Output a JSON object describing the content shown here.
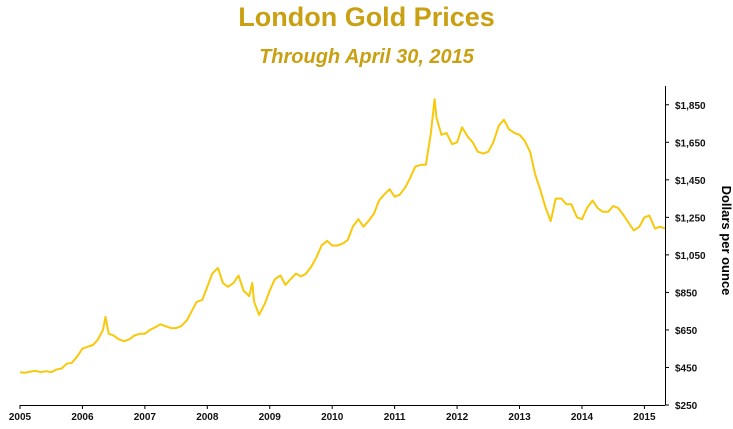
{
  "chart_data": {
    "type": "line",
    "title": "London Gold Prices",
    "subtitle": "Through April 30, 2015",
    "ylabel": "Dollars per ounce",
    "xlabel": "",
    "xlim": [
      2005,
      2015.33
    ],
    "ylim": [
      250,
      1950
    ],
    "x_ticks": [
      "2005",
      "2006",
      "2007",
      "2008",
      "2009",
      "2010",
      "2011",
      "2012",
      "2013",
      "2014",
      "2015"
    ],
    "y_ticks": [
      "$250",
      "$450",
      "$650",
      "$850",
      "$1,050",
      "$1,250",
      "$1,450",
      "$1,650",
      "$1,850"
    ],
    "grid": false,
    "legend": "none",
    "colors": {
      "title": "#C9A012",
      "line": "#F7C90A",
      "axis": "#000000"
    },
    "series": [
      {
        "x": [
          2005.0,
          2005.08,
          2005.17,
          2005.25,
          2005.33,
          2005.42,
          2005.5,
          2005.58,
          2005.67,
          2005.75,
          2005.83,
          2005.92,
          2006.0,
          2006.08,
          2006.17,
          2006.25,
          2006.33,
          2006.37,
          2006.42,
          2006.5,
          2006.58,
          2006.67,
          2006.75,
          2006.83,
          2006.92,
          2007.0,
          2007.08,
          2007.17,
          2007.25,
          2007.33,
          2007.42,
          2007.5,
          2007.58,
          2007.67,
          2007.75,
          2007.83,
          2007.92,
          2008.0,
          2008.08,
          2008.17,
          2008.2,
          2008.25,
          2008.33,
          2008.42,
          2008.5,
          2008.58,
          2008.67,
          2008.72,
          2008.75,
          2008.83,
          2008.92,
          2009.0,
          2009.08,
          2009.17,
          2009.25,
          2009.33,
          2009.42,
          2009.5,
          2009.58,
          2009.67,
          2009.75,
          2009.83,
          2009.92,
          2010.0,
          2010.08,
          2010.17,
          2010.25,
          2010.33,
          2010.42,
          2010.5,
          2010.58,
          2010.67,
          2010.75,
          2010.83,
          2010.92,
          2011.0,
          2011.08,
          2011.17,
          2011.25,
          2011.33,
          2011.42,
          2011.5,
          2011.58,
          2011.64,
          2011.67,
          2011.75,
          2011.83,
          2011.92,
          2012.0,
          2012.08,
          2012.17,
          2012.25,
          2012.33,
          2012.42,
          2012.5,
          2012.58,
          2012.67,
          2012.75,
          2012.83,
          2012.92,
          2013.0,
          2013.08,
          2013.17,
          2013.25,
          2013.33,
          2013.42,
          2013.5,
          2013.58,
          2013.67,
          2013.75,
          2013.83,
          2013.92,
          2014.0,
          2014.08,
          2014.17,
          2014.25,
          2014.33,
          2014.42,
          2014.5,
          2014.58,
          2014.67,
          2014.75,
          2014.83,
          2014.92,
          2015.0,
          2015.08,
          2015.17,
          2015.25,
          2015.33
        ],
        "values": [
          425,
          422,
          428,
          432,
          425,
          430,
          425,
          438,
          445,
          470,
          475,
          510,
          550,
          560,
          570,
          600,
          650,
          720,
          630,
          620,
          600,
          590,
          600,
          620,
          630,
          630,
          650,
          665,
          680,
          670,
          660,
          660,
          670,
          700,
          750,
          800,
          810,
          880,
          950,
          980,
          950,
          900,
          880,
          900,
          940,
          860,
          830,
          900,
          800,
          730,
          790,
          860,
          920,
          940,
          890,
          920,
          950,
          935,
          950,
          990,
          1040,
          1100,
          1125,
          1100,
          1100,
          1110,
          1130,
          1200,
          1240,
          1200,
          1230,
          1270,
          1340,
          1370,
          1400,
          1360,
          1370,
          1410,
          1460,
          1520,
          1530,
          1530,
          1700,
          1880,
          1780,
          1690,
          1700,
          1640,
          1650,
          1730,
          1680,
          1650,
          1600,
          1590,
          1600,
          1650,
          1740,
          1770,
          1720,
          1700,
          1690,
          1660,
          1600,
          1480,
          1400,
          1300,
          1230,
          1350,
          1350,
          1320,
          1320,
          1250,
          1240,
          1300,
          1340,
          1300,
          1280,
          1280,
          1310,
          1300,
          1260,
          1220,
          1180,
          1200,
          1250,
          1260,
          1190,
          1200,
          1190
        ]
      }
    ]
  }
}
